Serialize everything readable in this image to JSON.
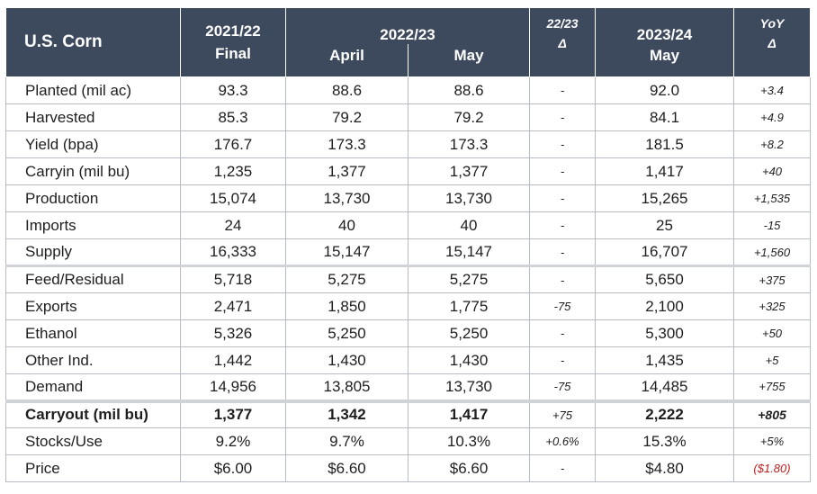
{
  "header": {
    "title": "U.S. Corn",
    "col_2021_year": "2021/22",
    "col_2021_sub": "Final",
    "col_2022_year": "2022/23",
    "col_2022_april": "April",
    "col_2022_may": "May",
    "col_change_year": "22/23",
    "col_change_delta": "Δ",
    "col_2023_year": "2023/24",
    "col_2023_may": "May",
    "col_yoy": "YoY",
    "col_yoy_delta": "Δ"
  },
  "rows": [
    {
      "label": "Planted (mil ac)",
      "c2021": "93.3",
      "april": "88.6",
      "may": "88.6",
      "chg": "-",
      "c2023": "92.0",
      "yoy": "+3.4"
    },
    {
      "label": "Harvested",
      "c2021": "85.3",
      "april": "79.2",
      "may": "79.2",
      "chg": "-",
      "c2023": "84.1",
      "yoy": "+4.9"
    },
    {
      "label": "Yield (bpa)",
      "c2021": "176.7",
      "april": "173.3",
      "may": "173.3",
      "chg": "-",
      "c2023": "181.5",
      "yoy": "+8.2"
    },
    {
      "label": "Carryin (mil bu)",
      "c2021": "1,235",
      "april": "1,377",
      "may": "1,377",
      "chg": "-",
      "c2023": "1,417",
      "yoy": "+40"
    },
    {
      "label": "Production",
      "c2021": "15,074",
      "april": "13,730",
      "may": "13,730",
      "chg": "-",
      "c2023": "15,265",
      "yoy": "+1,535"
    },
    {
      "label": "Imports",
      "c2021": "24",
      "april": "40",
      "may": "40",
      "chg": "-",
      "c2023": "25",
      "yoy": "-15"
    },
    {
      "label": "Supply",
      "c2021": "16,333",
      "april": "15,147",
      "may": "15,147",
      "chg": "-",
      "c2023": "16,707",
      "yoy": "+1,560"
    },
    {
      "label": "Feed/Residual",
      "c2021": "5,718",
      "april": "5,275",
      "may": "5,275",
      "chg": "-",
      "c2023": "5,650",
      "yoy": "+375"
    },
    {
      "label": "Exports",
      "c2021": "2,471",
      "april": "1,850",
      "may": "1,775",
      "chg": "-75",
      "c2023": "2,100",
      "yoy": "+325"
    },
    {
      "label": "Ethanol",
      "c2021": "5,326",
      "april": "5,250",
      "may": "5,250",
      "chg": "-",
      "c2023": "5,300",
      "yoy": "+50"
    },
    {
      "label": "Other Ind.",
      "c2021": "1,442",
      "april": "1,430",
      "may": "1,430",
      "chg": "-",
      "c2023": "1,435",
      "yoy": "+5"
    },
    {
      "label": "Demand",
      "c2021": "14,956",
      "april": "13,805",
      "may": "13,730",
      "chg": "-75",
      "c2023": "14,485",
      "yoy": "+755"
    },
    {
      "label": "Carryout (mil bu)",
      "c2021": "1,377",
      "april": "1,342",
      "may": "1,417",
      "chg": "+75",
      "c2023": "2,222",
      "yoy": "+805"
    },
    {
      "label": "Stocks/Use",
      "c2021": "9.2%",
      "april": "9.7%",
      "may": "10.3%",
      "chg": "+0.6%",
      "c2023": "15.3%",
      "yoy": "+5%"
    },
    {
      "label": "Price",
      "c2021": "$6.00",
      "april": "$6.60",
      "may": "$6.60",
      "chg": "-",
      "c2023": "$4.80",
      "yoy": "($1.80)"
    }
  ],
  "colors": {
    "header_bg": "#3d4a5e",
    "negative": "#c0201f"
  }
}
